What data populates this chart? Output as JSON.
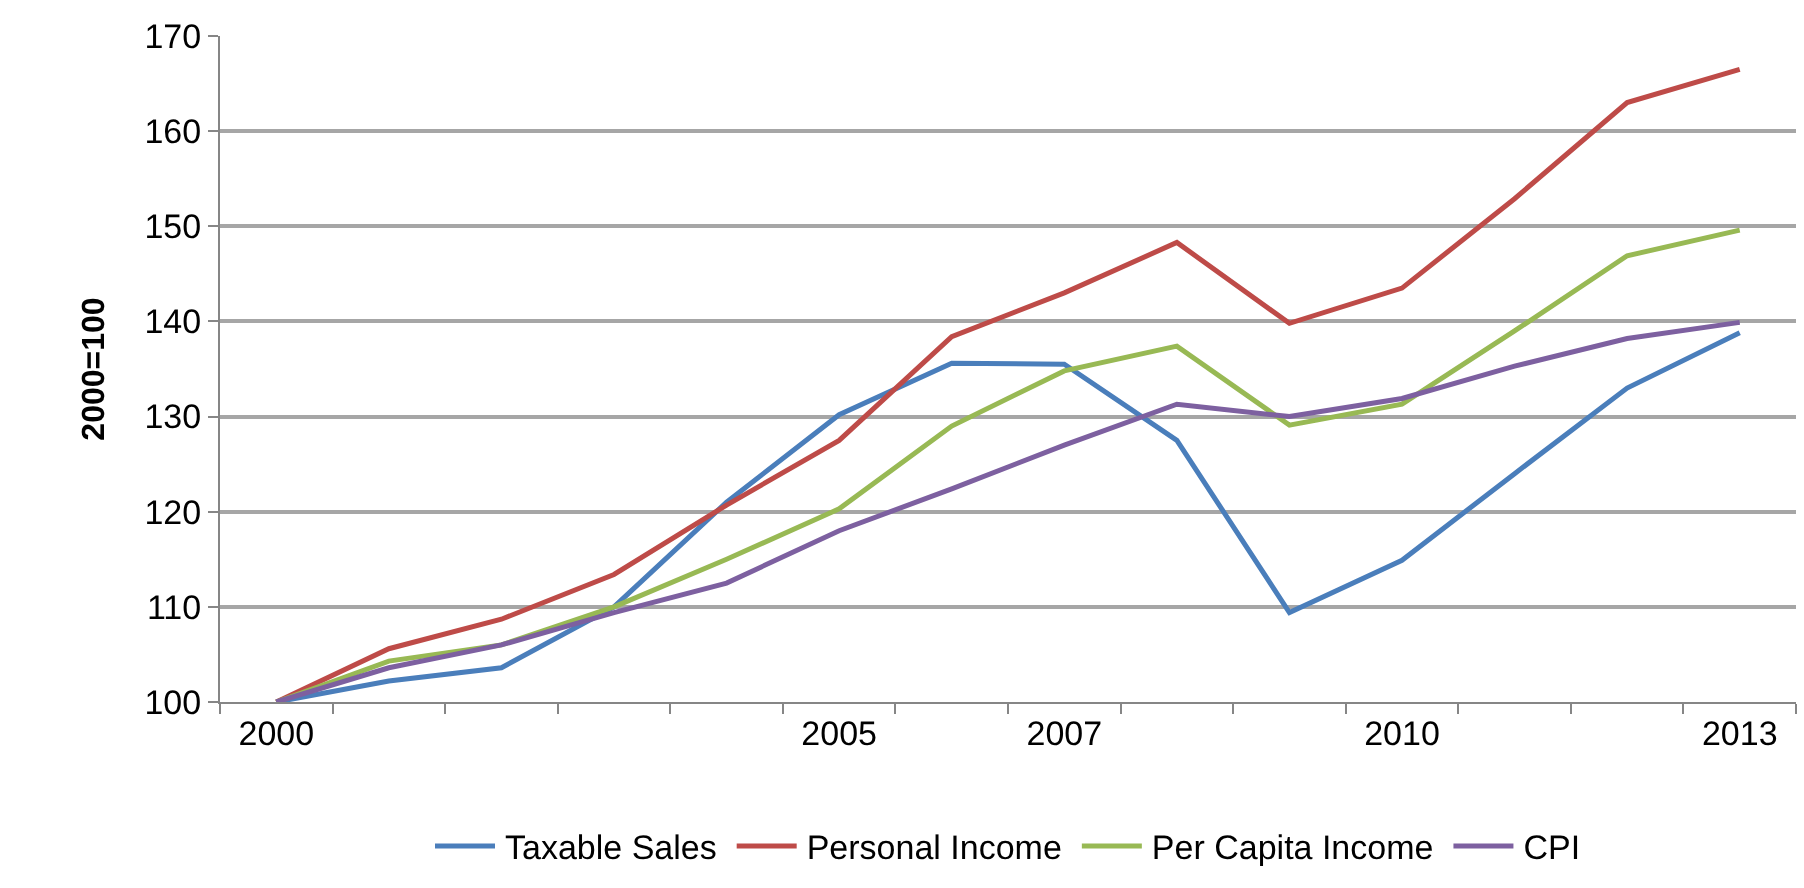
{
  "chart_data": {
    "type": "line",
    "ylabel": "2000=100",
    "categories": [
      "2000",
      null,
      null,
      null,
      null,
      "2005",
      null,
      "2007",
      null,
      null,
      "2010",
      null,
      null,
      "2013"
    ],
    "series": [
      {
        "name": "Taxable Sales",
        "color": "#4a7ebb",
        "values": [
          100,
          102.2,
          103.6,
          110,
          121,
          130.2,
          135.6,
          135.5,
          127.5,
          109.4,
          114.9,
          124,
          133,
          138.8
        ]
      },
      {
        "name": "Personal Income",
        "color": "#be4b48",
        "values": [
          100,
          105.6,
          108.7,
          113.4,
          120.7,
          127.5,
          138.4,
          143,
          148.3,
          139.8,
          143.5,
          152.9,
          163,
          166.5
        ]
      },
      {
        "name": "Per Capita Income",
        "color": "#98b954",
        "values": [
          100,
          104.3,
          106,
          110,
          115,
          120.3,
          129,
          134.8,
          137.4,
          129.1,
          131.3,
          139,
          146.9,
          149.6
        ]
      },
      {
        "name": "CPI",
        "color": "#7d60a0",
        "values": [
          100,
          103.6,
          106,
          109.4,
          112.5,
          118,
          122.4,
          127,
          131.3,
          130,
          131.9,
          135.3,
          138.2,
          139.9
        ]
      }
    ],
    "ylim": [
      100,
      170
    ],
    "yticks": [
      100,
      110,
      120,
      130,
      140,
      150,
      160,
      170
    ],
    "grid": "y",
    "legend": "bottom",
    "marker": "none",
    "line_style": "solid"
  }
}
